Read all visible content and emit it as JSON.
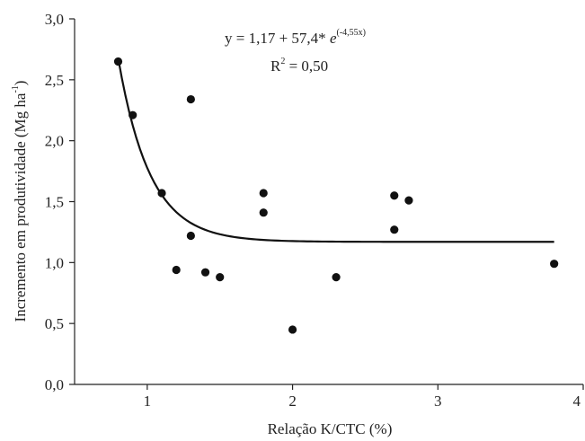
{
  "chart_data": {
    "type": "scatter",
    "xlabel": "Relação K/CTC (%)",
    "ylabel_main": "Incremento em produtividade (Mg ha",
    "ylabel_sup": "-1",
    "ylabel_close": ")",
    "xlim": [
      0.5,
      4
    ],
    "ylim": [
      0,
      3.0
    ],
    "xticks": [
      {
        "value": 1,
        "label": "1"
      },
      {
        "value": 2,
        "label": "2"
      },
      {
        "value": 3,
        "label": "3"
      },
      {
        "value": 4,
        "label": "4"
      }
    ],
    "yticks": [
      {
        "value": 0.0,
        "label": "0,0"
      },
      {
        "value": 0.5,
        "label": "0,5"
      },
      {
        "value": 1.0,
        "label": "1,0"
      },
      {
        "value": 1.5,
        "label": "1,5"
      },
      {
        "value": 2.0,
        "label": "2,0"
      },
      {
        "value": 2.5,
        "label": "2,5"
      },
      {
        "value": 3.0,
        "label": "3,0"
      }
    ],
    "points": [
      {
        "x": 0.8,
        "y": 2.65
      },
      {
        "x": 0.9,
        "y": 2.21
      },
      {
        "x": 1.1,
        "y": 1.57
      },
      {
        "x": 1.2,
        "y": 0.94
      },
      {
        "x": 1.3,
        "y": 2.34
      },
      {
        "x": 1.3,
        "y": 1.22
      },
      {
        "x": 1.4,
        "y": 0.92
      },
      {
        "x": 1.5,
        "y": 0.88
      },
      {
        "x": 1.8,
        "y": 1.57
      },
      {
        "x": 1.8,
        "y": 1.41
      },
      {
        "x": 2.0,
        "y": 0.45
      },
      {
        "x": 2.3,
        "y": 0.88
      },
      {
        "x": 2.7,
        "y": 1.55
      },
      {
        "x": 2.7,
        "y": 1.27
      },
      {
        "x": 2.8,
        "y": 1.51
      },
      {
        "x": 3.8,
        "y": 0.99
      }
    ],
    "fit": {
      "a": 1.17,
      "b": 57.4,
      "c": -4.55,
      "x_range": [
        0.8,
        3.8
      ]
    },
    "equation": {
      "prefix": "y = 1,17 + 57,4* ",
      "base": "e",
      "exponent": "(-4,55x)",
      "r2_label": "R",
      "r2_sup": "2",
      "r2_value": " = 0,50"
    },
    "grid": false
  }
}
